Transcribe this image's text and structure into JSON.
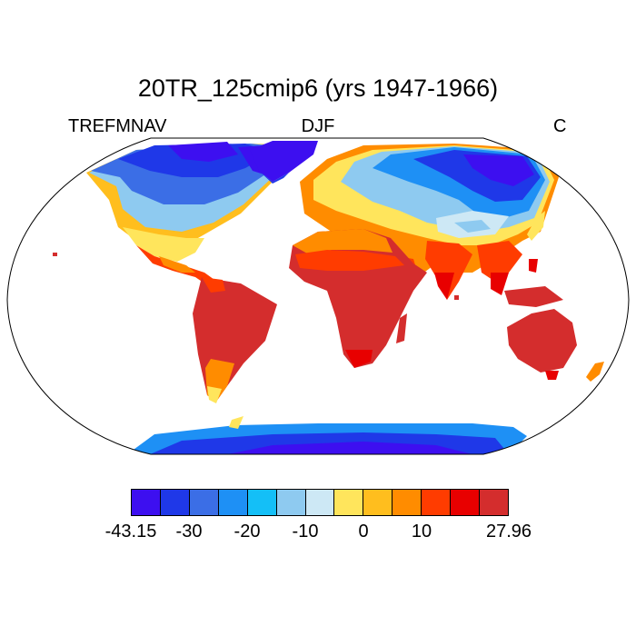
{
  "header": {
    "title": "20TR_125cmip6 (yrs 1947-1966)",
    "variable": "TREFMNAV",
    "season": "DJF",
    "units": "C"
  },
  "colorbar": {
    "colors": [
      "#3d0ff0",
      "#1f38e8",
      "#3b6ee6",
      "#1e90f5",
      "#14bff7",
      "#8ecaf0",
      "#cde8f5",
      "#ffe55c",
      "#ffbe1e",
      "#ff8c00",
      "#ff3c00",
      "#e80000",
      "#d42d2d"
    ],
    "labels": [
      "-43.15",
      "-30",
      "-20",
      "-10",
      "0",
      "10",
      "27.96"
    ]
  },
  "legend": {
    "range_min": -43.15,
    "range_max": 27.96,
    "interval": 5
  }
}
